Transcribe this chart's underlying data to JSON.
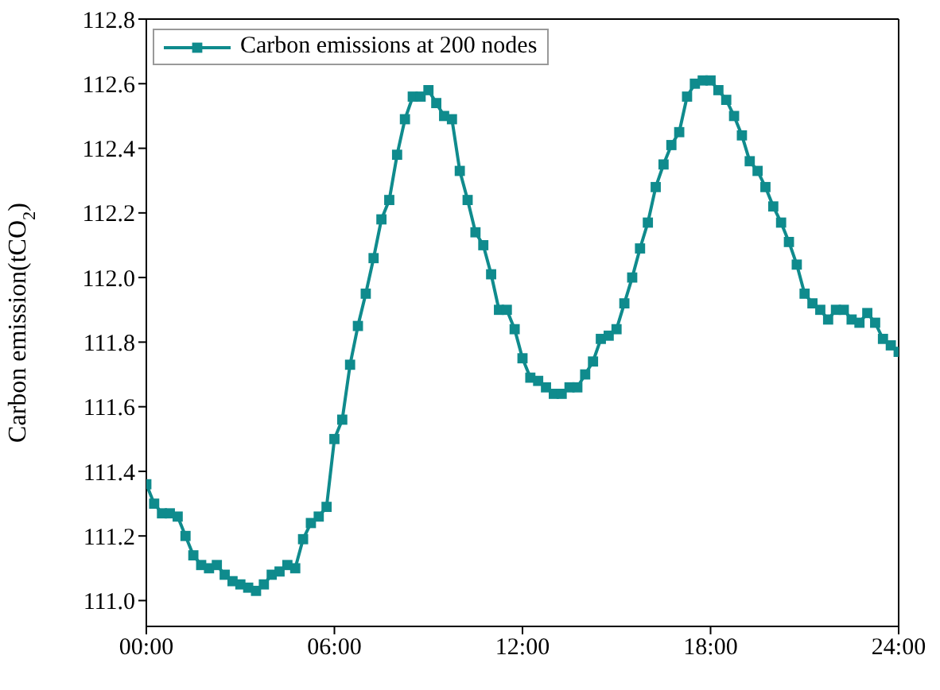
{
  "chart_data": {
    "type": "line",
    "ylabel": "Carbon emission(tCO$_{2}$)",
    "x": [
      0,
      0.25,
      0.5,
      0.75,
      1,
      1.25,
      1.5,
      1.75,
      2,
      2.25,
      2.5,
      2.75,
      3,
      3.25,
      3.5,
      3.75,
      4,
      4.25,
      4.5,
      4.75,
      5,
      5.25,
      5.5,
      5.75,
      6,
      6.25,
      6.5,
      6.75,
      7,
      7.25,
      7.5,
      7.75,
      8,
      8.25,
      8.5,
      8.75,
      9,
      9.25,
      9.5,
      9.75,
      10,
      10.25,
      10.5,
      10.75,
      11,
      11.25,
      11.5,
      11.75,
      12,
      12.25,
      12.5,
      12.75,
      13,
      13.25,
      13.5,
      13.75,
      14,
      14.25,
      14.5,
      14.75,
      15,
      15.25,
      15.5,
      15.75,
      16,
      16.25,
      16.5,
      16.75,
      17,
      17.25,
      17.5,
      17.75,
      18,
      18.25,
      18.5,
      18.75,
      19,
      19.25,
      19.5,
      19.75,
      20,
      20.25,
      20.5,
      20.75,
      21,
      21.25,
      21.5,
      21.75,
      22,
      22.25,
      22.5,
      22.75,
      23,
      23.25,
      23.5,
      23.75,
      24
    ],
    "series": [
      {
        "name": "Carbon emissions at 200 nodes",
        "color": "#0f8b8d",
        "values": [
          111.36,
          111.3,
          111.27,
          111.27,
          111.26,
          111.2,
          111.14,
          111.11,
          111.1,
          111.11,
          111.08,
          111.06,
          111.05,
          111.04,
          111.03,
          111.05,
          111.08,
          111.09,
          111.11,
          111.1,
          111.19,
          111.24,
          111.26,
          111.29,
          111.5,
          111.56,
          111.73,
          111.85,
          111.95,
          112.06,
          112.18,
          112.24,
          112.38,
          112.49,
          112.56,
          112.56,
          112.58,
          112.54,
          112.5,
          112.49,
          112.33,
          112.24,
          112.14,
          112.1,
          112.01,
          111.9,
          111.9,
          111.84,
          111.75,
          111.69,
          111.68,
          111.66,
          111.64,
          111.64,
          111.66,
          111.66,
          111.7,
          111.74,
          111.81,
          111.82,
          111.84,
          111.92,
          112.0,
          112.09,
          112.17,
          112.28,
          112.35,
          112.41,
          112.45,
          112.56,
          112.6,
          112.61,
          112.61,
          112.58,
          112.55,
          112.5,
          112.44,
          112.36,
          112.33,
          112.28,
          112.22,
          112.17,
          112.11,
          112.04,
          111.95,
          111.92,
          111.9,
          111.87,
          111.9,
          111.9,
          111.87,
          111.86,
          111.89,
          111.86,
          111.81,
          111.79,
          111.77
        ]
      }
    ],
    "xlim": [
      0,
      24
    ],
    "xticks": [
      {
        "value": 0,
        "label": "00:00"
      },
      {
        "value": 6,
        "label": "06:00"
      },
      {
        "value": 12,
        "label": "12:00"
      },
      {
        "value": 18,
        "label": "18:00"
      },
      {
        "value": 24,
        "label": "24:00"
      }
    ],
    "ylim": [
      110.92,
      112.8
    ],
    "yticks": [
      {
        "value": 111.0,
        "label": "111.0"
      },
      {
        "value": 111.2,
        "label": "111.2"
      },
      {
        "value": 111.4,
        "label": "111.4"
      },
      {
        "value": 111.6,
        "label": "111.6"
      },
      {
        "value": 111.8,
        "label": "111.8"
      },
      {
        "value": 112.0,
        "label": "112.0"
      },
      {
        "value": 112.2,
        "label": "112.2"
      },
      {
        "value": 112.4,
        "label": "112.4"
      },
      {
        "value": 112.6,
        "label": "112.6"
      },
      {
        "value": 112.8,
        "label": "112.8"
      }
    ],
    "grid": false,
    "legend": "top left",
    "marker": "square",
    "line_style": "solid"
  }
}
